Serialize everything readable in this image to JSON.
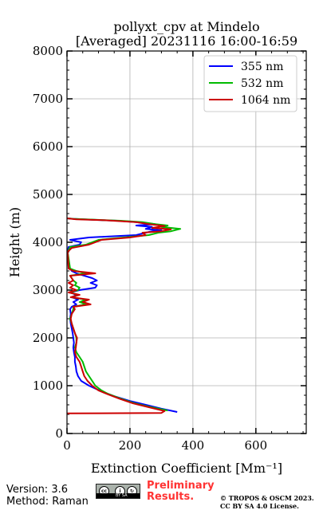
{
  "chart_data": {
    "type": "line",
    "title_line1": "pollyxt_cpv at Mindelo",
    "title_line2": "[Averaged] 20231116 16:00-16:59",
    "xlabel": "Extinction Coefficient [Mm⁻¹]",
    "ylabel": "Height (m)",
    "xlim": [
      0,
      760
    ],
    "ylim": [
      0,
      8000
    ],
    "xticks": [
      0,
      200,
      400,
      600
    ],
    "yticks": [
      0,
      1000,
      2000,
      3000,
      4000,
      5000,
      6000,
      7000,
      8000
    ],
    "grid": true,
    "legend_position": "top-right",
    "series": [
      {
        "name": "355 nm",
        "color": "#0000ff",
        "points": [
          [
            350,
            450
          ],
          [
            300,
            520
          ],
          [
            250,
            600
          ],
          [
            200,
            680
          ],
          [
            150,
            780
          ],
          [
            110,
            880
          ],
          [
            70,
            1000
          ],
          [
            45,
            1100
          ],
          [
            35,
            1200
          ],
          [
            30,
            1300
          ],
          [
            28,
            1400
          ],
          [
            25,
            1500
          ],
          [
            25,
            1600
          ],
          [
            22,
            1700
          ],
          [
            20,
            1800
          ],
          [
            22,
            1900
          ],
          [
            20,
            2000
          ],
          [
            18,
            2100
          ],
          [
            15,
            2200
          ],
          [
            12,
            2300
          ],
          [
            10,
            2400
          ],
          [
            12,
            2500
          ],
          [
            10,
            2600
          ],
          [
            15,
            2650
          ],
          [
            30,
            2700
          ],
          [
            20,
            2750
          ],
          [
            35,
            2800
          ],
          [
            15,
            2850
          ],
          [
            30,
            2900
          ],
          [
            10,
            2950
          ],
          [
            40,
            3000
          ],
          [
            90,
            3050
          ],
          [
            95,
            3100
          ],
          [
            75,
            3150
          ],
          [
            95,
            3200
          ],
          [
            80,
            3250
          ],
          [
            55,
            3300
          ],
          [
            30,
            3350
          ],
          [
            15,
            3400
          ],
          [
            5,
            3500
          ],
          [
            2,
            3800
          ],
          [
            5,
            3900
          ],
          [
            40,
            3950
          ],
          [
            45,
            4000
          ],
          [
            10,
            4050
          ],
          [
            70,
            4100
          ],
          [
            220,
            4150
          ],
          [
            250,
            4200
          ],
          [
            270,
            4230
          ],
          [
            300,
            4250
          ],
          [
            250,
            4280
          ],
          [
            270,
            4320
          ],
          [
            220,
            4350
          ],
          [
            280,
            4380
          ],
          [
            220,
            4420
          ],
          [
            160,
            4450
          ],
          [
            80,
            4470
          ],
          [
            20,
            4490
          ],
          [
            0,
            4500
          ]
        ]
      },
      {
        "name": "532 nm",
        "color": "#00bb00",
        "points": [
          [
            320,
            480
          ],
          [
            260,
            560
          ],
          [
            210,
            640
          ],
          [
            170,
            730
          ],
          [
            130,
            830
          ],
          [
            110,
            900
          ],
          [
            90,
            1000
          ],
          [
            80,
            1100
          ],
          [
            70,
            1200
          ],
          [
            60,
            1300
          ],
          [
            55,
            1400
          ],
          [
            50,
            1500
          ],
          [
            40,
            1600
          ],
          [
            30,
            1700
          ],
          [
            25,
            1800
          ],
          [
            30,
            1900
          ],
          [
            30,
            2000
          ],
          [
            25,
            2100
          ],
          [
            20,
            2200
          ],
          [
            15,
            2300
          ],
          [
            10,
            2400
          ],
          [
            15,
            2500
          ],
          [
            20,
            2600
          ],
          [
            20,
            2650
          ],
          [
            60,
            2700
          ],
          [
            40,
            2750
          ],
          [
            60,
            2800
          ],
          [
            15,
            2850
          ],
          [
            35,
            2900
          ],
          [
            8,
            2950
          ],
          [
            35,
            3000
          ],
          [
            40,
            3050
          ],
          [
            25,
            3100
          ],
          [
            30,
            3150
          ],
          [
            20,
            3200
          ],
          [
            10,
            3300
          ],
          [
            60,
            3350
          ],
          [
            30,
            3400
          ],
          [
            10,
            3450
          ],
          [
            2,
            3800
          ],
          [
            10,
            3900
          ],
          [
            60,
            3950
          ],
          [
            80,
            4000
          ],
          [
            100,
            4050
          ],
          [
            180,
            4100
          ],
          [
            260,
            4150
          ],
          [
            290,
            4200
          ],
          [
            330,
            4230
          ],
          [
            360,
            4280
          ],
          [
            300,
            4320
          ],
          [
            320,
            4350
          ],
          [
            280,
            4380
          ],
          [
            240,
            4420
          ],
          [
            170,
            4450
          ],
          [
            90,
            4470
          ],
          [
            20,
            4490
          ],
          [
            0,
            4500
          ]
        ]
      },
      {
        "name": "1064 nm",
        "color": "#cc0000",
        "points": [
          [
            0,
            420
          ],
          [
            300,
            430
          ],
          [
            310,
            470
          ],
          [
            260,
            550
          ],
          [
            210,
            630
          ],
          [
            170,
            720
          ],
          [
            130,
            820
          ],
          [
            100,
            900
          ],
          [
            80,
            1000
          ],
          [
            65,
            1100
          ],
          [
            55,
            1200
          ],
          [
            50,
            1300
          ],
          [
            45,
            1400
          ],
          [
            40,
            1500
          ],
          [
            30,
            1600
          ],
          [
            25,
            1700
          ],
          [
            28,
            1800
          ],
          [
            30,
            1900
          ],
          [
            32,
            2000
          ],
          [
            25,
            2100
          ],
          [
            20,
            2200
          ],
          [
            15,
            2300
          ],
          [
            12,
            2400
          ],
          [
            15,
            2500
          ],
          [
            25,
            2600
          ],
          [
            20,
            2650
          ],
          [
            75,
            2700
          ],
          [
            50,
            2750
          ],
          [
            70,
            2800
          ],
          [
            12,
            2850
          ],
          [
            40,
            2900
          ],
          [
            5,
            2950
          ],
          [
            30,
            3000
          ],
          [
            10,
            3050
          ],
          [
            20,
            3100
          ],
          [
            5,
            3150
          ],
          [
            20,
            3200
          ],
          [
            10,
            3300
          ],
          [
            90,
            3350
          ],
          [
            20,
            3400
          ],
          [
            5,
            3450
          ],
          [
            2,
            3800
          ],
          [
            15,
            3880
          ],
          [
            70,
            3950
          ],
          [
            90,
            4000
          ],
          [
            110,
            4050
          ],
          [
            200,
            4100
          ],
          [
            250,
            4150
          ],
          [
            240,
            4200
          ],
          [
            300,
            4230
          ],
          [
            330,
            4270
          ],
          [
            270,
            4300
          ],
          [
            310,
            4340
          ],
          [
            260,
            4380
          ],
          [
            220,
            4420
          ],
          [
            120,
            4460
          ],
          [
            30,
            4480
          ],
          [
            0,
            4500
          ]
        ]
      }
    ]
  },
  "footer": {
    "version": "Version: 3.6",
    "method": "Method: Raman",
    "prelim_line1": "Preliminary",
    "prelim_line2": "Results.",
    "copyright_line1": "© TROPOS & OSCM 2023.",
    "copyright_line2": "CC BY SA 4.0 License.",
    "cc_text": "BY  SA"
  }
}
